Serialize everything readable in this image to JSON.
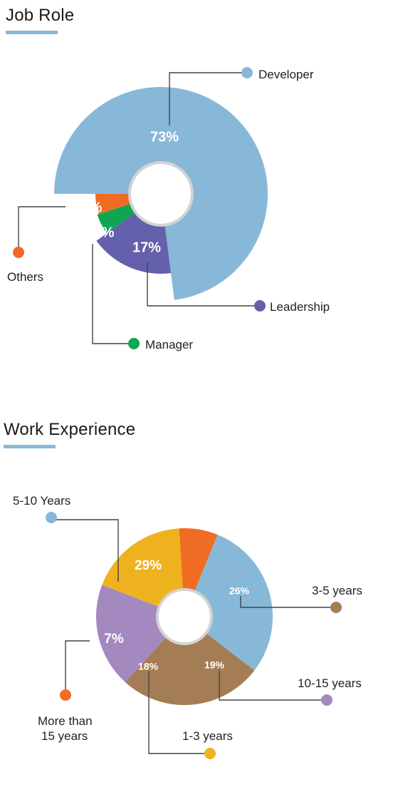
{
  "chart_data": [
    {
      "type": "pie",
      "title": "Job Role",
      "accent_color": "#88b8d8",
      "slices": [
        {
          "name": "Developer",
          "value": 73,
          "label": "73%",
          "color": "#88b8d8"
        },
        {
          "name": "Leadership",
          "value": 17,
          "label": "17%",
          "color": "#6560ab"
        },
        {
          "name": "Manager",
          "value": 5,
          "label": "5%",
          "color": "#0fa552"
        },
        {
          "name": "Others",
          "value": 5,
          "label": "5%",
          "color": "#f06b23"
        }
      ]
    },
    {
      "type": "pie",
      "title": "Work Experience",
      "accent_color": "#88b8d8",
      "slices": [
        {
          "name": "5-10 Years",
          "value": 29,
          "label": "29%",
          "color": "#88b8d8"
        },
        {
          "name": "3-5 years",
          "value": 26,
          "label": "26%",
          "color": "#a57d55"
        },
        {
          "name": "10-15 years",
          "value": 19,
          "label": "19%",
          "color": "#a389c0"
        },
        {
          "name": "1-3 years",
          "value": 18,
          "label": "18%",
          "color": "#efb21f"
        },
        {
          "name": "More than 15 years",
          "value": 7,
          "label": "7%",
          "color": "#f06b23"
        }
      ]
    }
  ]
}
